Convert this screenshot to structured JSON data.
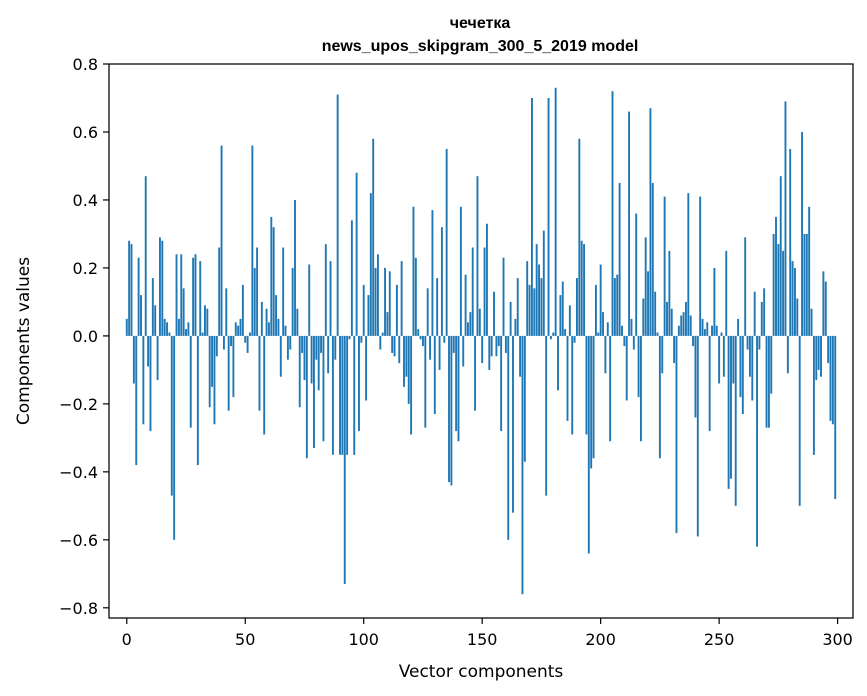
{
  "chart_data": {
    "type": "bar",
    "title": [
      "чечетка",
      "news_upos_skipgram_300_5_2019 model"
    ],
    "xlabel": "Vector components",
    "ylabel": "Components values",
    "xlim": [
      -7.5,
      306.5
    ],
    "ylim": [
      -0.83,
      0.8
    ],
    "xticks": [
      0,
      50,
      100,
      150,
      200,
      250,
      300
    ],
    "xtick_labels": [
      "0",
      "50",
      "100",
      "150",
      "200",
      "250",
      "300"
    ],
    "yticks": [
      -0.8,
      -0.6,
      -0.4,
      -0.2,
      0.0,
      0.2,
      0.4,
      0.6,
      0.8
    ],
    "ytick_labels": [
      "−0.8",
      "−0.6",
      "−0.4",
      "−0.2",
      "0.0",
      "0.2",
      "0.4",
      "0.6",
      "0.8"
    ],
    "grid": false,
    "bar_color": "#1f77b4",
    "x": [
      0,
      1,
      2,
      3,
      4,
      5,
      6,
      7,
      8,
      9,
      10,
      11,
      12,
      13,
      14,
      15,
      16,
      17,
      18,
      19,
      20,
      21,
      22,
      23,
      24,
      25,
      26,
      27,
      28,
      29,
      30,
      31,
      32,
      33,
      34,
      35,
      36,
      37,
      38,
      39,
      40,
      41,
      42,
      43,
      44,
      45,
      46,
      47,
      48,
      49,
      50,
      51,
      52,
      53,
      54,
      55,
      56,
      57,
      58,
      59,
      60,
      61,
      62,
      63,
      64,
      65,
      66,
      67,
      68,
      69,
      70,
      71,
      72,
      73,
      74,
      75,
      76,
      77,
      78,
      79,
      80,
      81,
      82,
      83,
      84,
      85,
      86,
      87,
      88,
      89,
      90,
      91,
      92,
      93,
      94,
      95,
      96,
      97,
      98,
      99,
      100,
      101,
      102,
      103,
      104,
      105,
      106,
      107,
      108,
      109,
      110,
      111,
      112,
      113,
      114,
      115,
      116,
      117,
      118,
      119,
      120,
      121,
      122,
      123,
      124,
      125,
      126,
      127,
      128,
      129,
      130,
      131,
      132,
      133,
      134,
      135,
      136,
      137,
      138,
      139,
      140,
      141,
      142,
      143,
      144,
      145,
      146,
      147,
      148,
      149,
      150,
      151,
      152,
      153,
      154,
      155,
      156,
      157,
      158,
      159,
      160,
      161,
      162,
      163,
      164,
      165,
      166,
      167,
      168,
      169,
      170,
      171,
      172,
      173,
      174,
      175,
      176,
      177,
      178,
      179,
      180,
      181,
      182,
      183,
      184,
      185,
      186,
      187,
      188,
      189,
      190,
      191,
      192,
      193,
      194,
      195,
      196,
      197,
      198,
      199,
      200,
      201,
      202,
      203,
      204,
      205,
      206,
      207,
      208,
      209,
      210,
      211,
      212,
      213,
      214,
      215,
      216,
      217,
      218,
      219,
      220,
      221,
      222,
      223,
      224,
      225,
      226,
      227,
      228,
      229,
      230,
      231,
      232,
      233,
      234,
      235,
      236,
      237,
      238,
      239,
      240,
      241,
      242,
      243,
      244,
      245,
      246,
      247,
      248,
      249,
      250,
      251,
      252,
      253,
      254,
      255,
      256,
      257,
      258,
      259,
      260,
      261,
      262,
      263,
      264,
      265,
      266,
      267,
      268,
      269,
      270,
      271,
      272,
      273,
      274,
      275,
      276,
      277,
      278,
      279,
      280,
      281,
      282,
      283,
      284,
      285,
      286,
      287,
      288,
      289,
      290,
      291,
      292,
      293,
      294,
      295,
      296,
      297,
      298,
      299
    ],
    "values": [
      0.05,
      0.28,
      0.27,
      -0.14,
      -0.38,
      0.23,
      0.12,
      -0.26,
      0.47,
      -0.09,
      -0.28,
      0.17,
      0.09,
      -0.13,
      0.29,
      0.28,
      0.05,
      0.04,
      0.01,
      -0.47,
      -0.6,
      0.24,
      0.05,
      0.24,
      0.14,
      0.02,
      0.04,
      -0.27,
      0.23,
      0.24,
      -0.38,
      0.22,
      0.01,
      0.09,
      0.08,
      -0.21,
      -0.15,
      -0.26,
      -0.06,
      0.26,
      0.56,
      -0.04,
      0.14,
      -0.22,
      -0.03,
      -0.18,
      0.04,
      0.03,
      0.05,
      0.15,
      -0.02,
      -0.05,
      0.01,
      0.56,
      0.2,
      0.26,
      -0.22,
      0.1,
      -0.29,
      0.08,
      0.04,
      0.35,
      0.32,
      0.12,
      0.05,
      -0.12,
      0.26,
      0.03,
      -0.07,
      -0.04,
      0.2,
      0.4,
      0.08,
      -0.21,
      -0.05,
      -0.13,
      -0.36,
      0.21,
      -0.14,
      -0.33,
      -0.07,
      -0.16,
      -0.05,
      -0.31,
      0.27,
      -0.11,
      0.22,
      -0.35,
      -0.07,
      0.71,
      -0.35,
      -0.35,
      -0.73,
      -0.35,
      -0.01,
      0.34,
      -0.35,
      0.48,
      -0.28,
      -0.02,
      0.15,
      -0.19,
      0.12,
      0.42,
      0.58,
      0.2,
      0.24,
      -0.04,
      0.01,
      0.2,
      0.07,
      0.19,
      -0.05,
      -0.06,
      0.15,
      -0.08,
      0.22,
      -0.15,
      -0.12,
      -0.2,
      -0.29,
      0.38,
      0.23,
      0.02,
      -0.01,
      -0.03,
      -0.27,
      0.14,
      -0.07,
      0.37,
      -0.23,
      0.17,
      -0.1,
      0.32,
      -0.02,
      0.55,
      -0.43,
      -0.44,
      -0.05,
      -0.28,
      -0.31,
      0.38,
      -0.09,
      0.18,
      0.04,
      0.07,
      0.26,
      -0.22,
      0.47,
      0.08,
      -0.08,
      0.26,
      0.33,
      -0.1,
      -0.06,
      0.13,
      -0.06,
      -0.03,
      -0.28,
      0.23,
      -0.05,
      -0.6,
      0.1,
      -0.52,
      0.05,
      0.17,
      -0.12,
      -0.76,
      -0.37,
      0.22,
      0.15,
      0.7,
      0.14,
      0.27,
      0.21,
      0.17,
      0.31,
      -0.47,
      0.7,
      -0.01,
      0.01,
      0.73,
      -0.16,
      0.12,
      0.16,
      0.02,
      -0.25,
      0.09,
      -0.29,
      -0.02,
      0.17,
      0.58,
      0.28,
      0.27,
      -0.29,
      -0.64,
      -0.39,
      -0.36,
      0.15,
      0.01,
      0.21,
      0.07,
      -0.11,
      0.04,
      -0.31,
      0.72,
      0.17,
      0.18,
      0.45,
      0.03,
      -0.03,
      -0.19,
      0.66,
      0.05,
      -0.04,
      0.36,
      -0.18,
      -0.31,
      0.11,
      0.29,
      0.19,
      0.67,
      0.45,
      0.13,
      0.01,
      -0.36,
      -0.11,
      0.41,
      0.1,
      0.25,
      0.08,
      -0.08,
      -0.58,
      0.03,
      0.06,
      0.07,
      0.1,
      0.42,
      0.06,
      -0.03,
      -0.24,
      -0.59,
      0.41,
      0.05,
      0.02,
      0.04,
      -0.28,
      0.03,
      0.2,
      0.03,
      -0.14,
      0.01,
      -0.12,
      0.25,
      -0.45,
      -0.42,
      -0.14,
      -0.5,
      0.05,
      -0.18,
      -0.23,
      0.29,
      -0.04,
      -0.12,
      -0.19,
      0.13,
      -0.62,
      -0.04,
      0.1,
      0.14,
      -0.27,
      -0.27,
      -0.17,
      0.3,
      0.35,
      0.27,
      0.47,
      0.25,
      0.69,
      -0.11,
      0.55,
      0.22,
      0.2,
      0.11,
      -0.5,
      0.6,
      0.3,
      0.3,
      0.38,
      0.08,
      -0.35,
      -0.13,
      -0.1,
      -0.12,
      0.19,
      0.16,
      -0.08,
      -0.25,
      -0.26,
      -0.48
    ]
  }
}
